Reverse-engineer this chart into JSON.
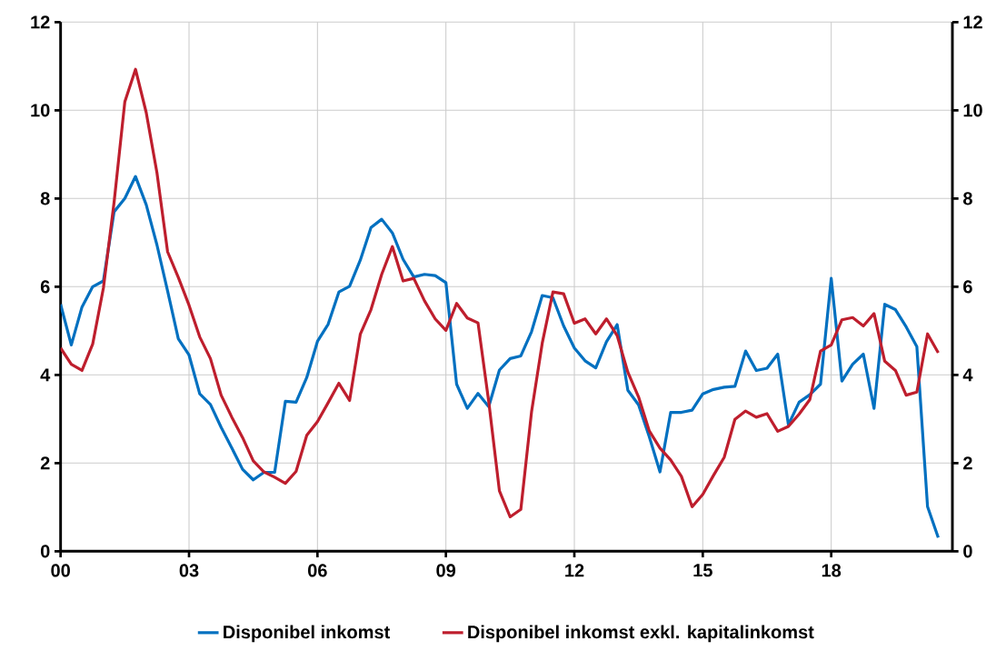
{
  "chart_data": {
    "type": "line",
    "x": [
      2000,
      2000.25,
      2000.5,
      2000.75,
      2001,
      2001.25,
      2001.5,
      2001.75,
      2002,
      2002.25,
      2002.5,
      2002.75,
      2003,
      2003.25,
      2003.5,
      2003.75,
      2004,
      2004.25,
      2004.5,
      2004.75,
      2005,
      2005.25,
      2005.5,
      2005.75,
      2006,
      2006.25,
      2006.5,
      2006.75,
      2007,
      2007.25,
      2007.5,
      2007.75,
      2008,
      2008.25,
      2008.5,
      2008.75,
      2009,
      2009.25,
      2009.5,
      2009.75,
      2010,
      2010.25,
      2010.5,
      2010.75,
      2011,
      2011.25,
      2011.5,
      2011.75,
      2012,
      2012.25,
      2012.5,
      2012.75,
      2013,
      2013.25,
      2013.5,
      2013.75,
      2014,
      2014.25,
      2014.5,
      2014.75,
      2015,
      2015.25,
      2015.5,
      2015.75,
      2016,
      2016.25,
      2016.5,
      2016.75,
      2017,
      2017.25,
      2017.5,
      2017.75,
      2018,
      2018.25,
      2018.5,
      2018.75,
      2019,
      2019.25,
      2019.5,
      2019.75,
      2020,
      2020.25,
      2020.5
    ],
    "series": [
      {
        "name": "Disponibel inkomst",
        "color": "#0070c0",
        "values": [
          5.6,
          4.68,
          5.54,
          6.0,
          6.13,
          7.7,
          8.0,
          8.5,
          7.86,
          6.95,
          5.9,
          4.82,
          4.45,
          3.57,
          3.33,
          2.81,
          2.34,
          1.86,
          1.62,
          1.79,
          1.79,
          3.4,
          3.38,
          3.94,
          4.76,
          5.15,
          5.88,
          6.01,
          6.6,
          7.34,
          7.53,
          7.22,
          6.62,
          6.22,
          6.28,
          6.25,
          6.09,
          3.79,
          3.24,
          3.58,
          3.28,
          4.11,
          4.37,
          4.43,
          4.98,
          5.8,
          5.75,
          5.11,
          4.61,
          4.32,
          4.16,
          4.75,
          5.14,
          3.65,
          3.32,
          2.6,
          1.8,
          3.15,
          3.15,
          3.2,
          3.57,
          3.67,
          3.72,
          3.74,
          4.54,
          4.1,
          4.15,
          4.47,
          2.87,
          3.38,
          3.55,
          3.79,
          6.19,
          3.86,
          4.24,
          4.47,
          3.24,
          5.6,
          5.48,
          5.09,
          4.64,
          1.01,
          0.31
        ]
      },
      {
        "name": "Disponibel inkomst exkl. kapitalinkomst",
        "color": "#be1e2d",
        "values": [
          4.61,
          4.24,
          4.1,
          4.7,
          5.97,
          7.92,
          10.19,
          10.93,
          9.95,
          8.59,
          6.79,
          6.21,
          5.58,
          4.86,
          4.37,
          3.54,
          3.04,
          2.58,
          2.05,
          1.8,
          1.68,
          1.54,
          1.81,
          2.63,
          2.94,
          3.37,
          3.81,
          3.42,
          4.92,
          5.48,
          6.28,
          6.91,
          6.13,
          6.19,
          5.68,
          5.27,
          5.01,
          5.62,
          5.29,
          5.18,
          3.4,
          1.37,
          0.78,
          0.95,
          3.16,
          4.72,
          5.88,
          5.84,
          5.17,
          5.27,
          4.93,
          5.27,
          4.89,
          4.06,
          3.5,
          2.73,
          2.34,
          2.07,
          1.7,
          1.01,
          1.29,
          1.72,
          2.13,
          2.99,
          3.18,
          3.04,
          3.12,
          2.72,
          2.83,
          3.11,
          3.44,
          4.54,
          4.68,
          5.25,
          5.3,
          5.11,
          5.39,
          4.31,
          4.1,
          3.54,
          3.61,
          4.93,
          4.5
        ]
      }
    ],
    "xlim": [
      2000,
      2020.83
    ],
    "xticks": [
      {
        "value": 2000,
        "label": "00"
      },
      {
        "value": 2003,
        "label": "03"
      },
      {
        "value": 2006,
        "label": "06"
      },
      {
        "value": 2009,
        "label": "09"
      },
      {
        "value": 2012,
        "label": "12"
      },
      {
        "value": 2015,
        "label": "15"
      },
      {
        "value": 2018,
        "label": "18"
      }
    ],
    "ylim": [
      0,
      12
    ],
    "yticks": [
      0,
      2,
      4,
      6,
      8,
      10,
      12
    ],
    "y2lim": [
      0,
      12
    ],
    "y2ticks": [
      0,
      2,
      4,
      6,
      8,
      10,
      12
    ],
    "grid": true,
    "legend": "bottom",
    "line_style": "solid",
    "marker": "none"
  }
}
